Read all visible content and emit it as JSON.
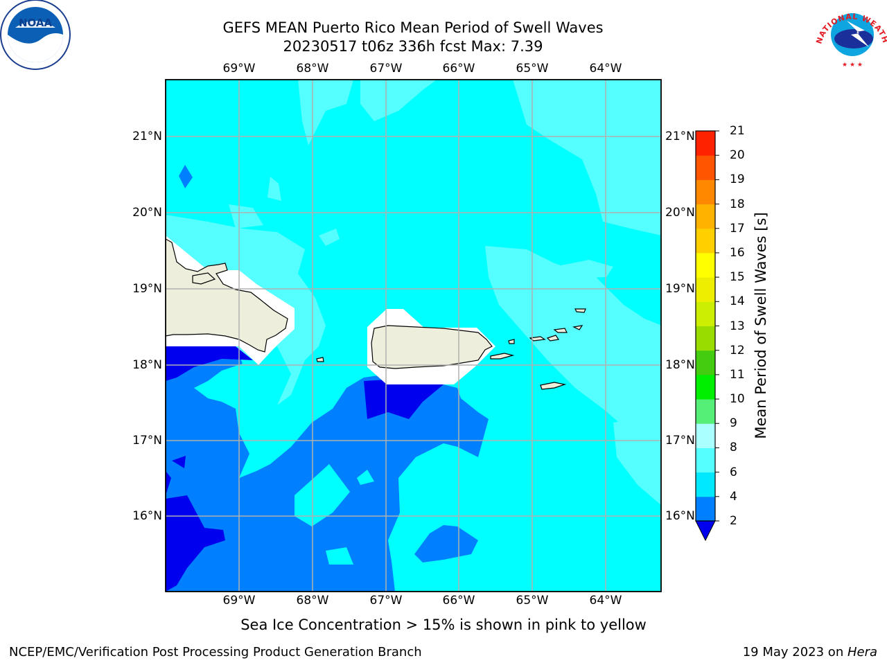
{
  "title_line1": "GEFS MEAN Puerto Rico Mean Period of Swell Waves",
  "title_line2": "20230517 t06z 336h fcst   Max: 7.39",
  "lon_ticks": [
    "69°W",
    "68°W",
    "67°W",
    "66°W",
    "65°W",
    "64°W"
  ],
  "lat_ticks": [
    "21°N",
    "20°N",
    "19°N",
    "18°N",
    "17°N",
    "16°N"
  ],
  "colorbar": {
    "title": "Mean Period of Swell Waves [s]",
    "levels": [
      "2",
      "4",
      "6",
      "8",
      "9",
      "10",
      "11",
      "12",
      "13",
      "14",
      "15",
      "16",
      "17",
      "18",
      "19",
      "20",
      "21"
    ],
    "colors": [
      "#0080ff",
      "#00e8ff",
      "#55ffff",
      "#aaffff",
      "#55ee77",
      "#00ee00",
      "#44cc11",
      "#99dd00",
      "#ccee00",
      "#eeee00",
      "#ffff00",
      "#ffd000",
      "#ffb300",
      "#ff8800",
      "#ff5500",
      "#ff2200"
    ],
    "extend_color": "#0000ee"
  },
  "fill_colors": {
    "land": "#eeeedd",
    "ocean_2_4": "#0080ff",
    "ocean_lt2": "#0000ee",
    "ocean_4_6": "#00ffff",
    "ocean_6_8": "#55ffff"
  },
  "note": "Sea Ice Concentration > 15% is shown in pink to yellow",
  "footer_left": "NCEP/EMC/Verification Post Processing Product Generation Branch",
  "footer_date": "19 May 2023 on ",
  "footer_host": "Hera",
  "logos": {
    "noaa_text": "NOAA",
    "nws_text": "NATIONAL WEATHER SERVICE"
  }
}
